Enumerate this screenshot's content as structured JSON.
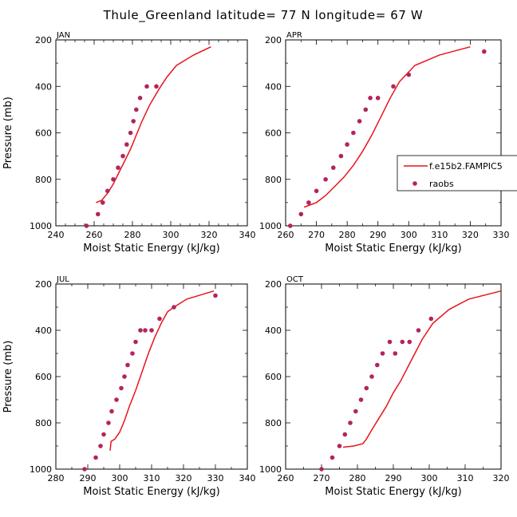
{
  "figure": {
    "title": "Thule_Greenland  latitude= 77 N longitude= 67 W"
  },
  "legend": {
    "model_label": "f.e15b2.FAMPIC5",
    "obs_label": "raobs",
    "model_color": "#e8141c",
    "obs_color": "#b3245f"
  },
  "chart_data": [
    {
      "type": "line",
      "title": "JAN",
      "xlabel": "Moist Static Energy (kJ/kg)",
      "ylabel": "Pressure (mb)",
      "xlim": [
        240,
        340
      ],
      "ylim": [
        1000,
        200
      ],
      "xticks": [
        240,
        260,
        280,
        300,
        320,
        340
      ],
      "yticks": [
        200,
        400,
        600,
        800,
        1000
      ],
      "model": {
        "name": "f.e15b2.FAMPIC5",
        "x": [
          261,
          264,
          267,
          270,
          273,
          276,
          279,
          282,
          285,
          289,
          294,
          298,
          303,
          312,
          321
        ],
        "p": [
          900,
          890,
          860,
          820,
          770,
          720,
          670,
          610,
          550,
          480,
          410,
          360,
          310,
          265,
          230
        ]
      },
      "obs": {
        "name": "raobs",
        "x": [
          256,
          262,
          264.5,
          267,
          270,
          272.5,
          275,
          277,
          279,
          280.5,
          282,
          284,
          287.5,
          292.5
        ],
        "p": [
          1000,
          950,
          900,
          850,
          800,
          750,
          700,
          650,
          600,
          550,
          500,
          450,
          400,
          400
        ]
      }
    },
    {
      "type": "line",
      "title": "APR",
      "xlabel": "Moist Static Energy (kJ/kg)",
      "ylabel": "",
      "xlim": [
        260,
        330
      ],
      "ylim": [
        1000,
        200
      ],
      "xticks": [
        260,
        270,
        280,
        290,
        300,
        310,
        320,
        330
      ],
      "yticks": [
        200,
        400,
        600,
        800,
        1000
      ],
      "model": {
        "name": "f.e15b2.FAMPIC5",
        "x": [
          266,
          270,
          273,
          276,
          279,
          282,
          285,
          288,
          291,
          294,
          297,
          302,
          310,
          320
        ],
        "p": [
          920,
          900,
          870,
          830,
          790,
          740,
          680,
          610,
          530,
          450,
          380,
          310,
          265,
          230
        ]
      },
      "obs": {
        "name": "raobs",
        "x": [
          261.5,
          265,
          267.5,
          270,
          273,
          275.5,
          278,
          280,
          282,
          284,
          286,
          287.5,
          290,
          295,
          300,
          324.5
        ],
        "p": [
          1000,
          950,
          900,
          850,
          800,
          750,
          700,
          650,
          600,
          550,
          500,
          450,
          450,
          400,
          350,
          250
        ]
      }
    },
    {
      "type": "line",
      "title": "JUL",
      "xlabel": "Moist Static Energy (kJ/kg)",
      "ylabel": "Pressure (mb)",
      "xlim": [
        280,
        340
      ],
      "ylim": [
        1000,
        200
      ],
      "xticks": [
        280,
        290,
        300,
        310,
        320,
        330,
        340
      ],
      "yticks": [
        200,
        400,
        600,
        800,
        1000
      ],
      "model": {
        "name": "f.e15b2.FAMPIC5",
        "x": [
          297,
          297.3,
          298.5,
          300,
          301.5,
          303,
          305,
          307,
          309,
          311,
          313,
          315,
          317,
          321,
          329.5
        ],
        "p": [
          920,
          880,
          870,
          840,
          790,
          730,
          660,
          580,
          500,
          430,
          370,
          320,
          300,
          265,
          230
        ]
      },
      "obs": {
        "name": "raobs",
        "x": [
          289,
          292.5,
          294,
          295,
          296.5,
          297.5,
          299,
          300.5,
          301.5,
          302.5,
          304,
          305,
          306.5,
          308,
          310,
          312.5,
          317,
          330
        ],
        "p": [
          1000,
          950,
          900,
          850,
          800,
          750,
          700,
          650,
          600,
          550,
          500,
          450,
          400,
          400,
          400,
          350,
          300,
          250
        ]
      }
    },
    {
      "type": "line",
      "title": "OCT",
      "xlabel": "Moist Static Energy (kJ/kg)",
      "ylabel": "",
      "xlim": [
        260,
        320
      ],
      "ylim": [
        1000,
        200
      ],
      "xticks": [
        260,
        270,
        280,
        290,
        300,
        310,
        320
      ],
      "yticks": [
        200,
        400,
        600,
        800,
        1000
      ],
      "model": {
        "name": "f.e15b2.FAMPIC5",
        "x": [
          276,
          279,
          281.5,
          282.5,
          284,
          286,
          288,
          290,
          292,
          294,
          296,
          298,
          301,
          305.5,
          311,
          320
        ],
        "p": [
          905,
          900,
          890,
          870,
          830,
          780,
          730,
          670,
          620,
          560,
          500,
          440,
          370,
          310,
          265,
          230
        ]
      },
      "obs": {
        "name": "raobs",
        "x": [
          270,
          273,
          275,
          276.5,
          278,
          279.5,
          281,
          282.5,
          284,
          285.5,
          287,
          289,
          290.5,
          292.5,
          294.5,
          297,
          300.5
        ],
        "p": [
          1000,
          950,
          900,
          850,
          800,
          750,
          700,
          650,
          600,
          550,
          500,
          450,
          500,
          450,
          450,
          400,
          350
        ]
      }
    }
  ]
}
